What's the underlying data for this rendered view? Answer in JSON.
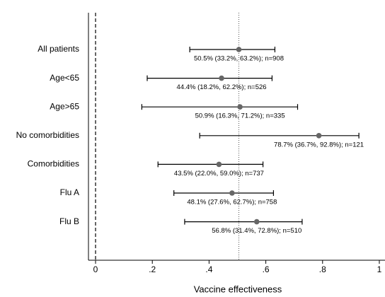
{
  "chart_data": {
    "type": "forest",
    "xlabel": "Vaccine effectiveness",
    "categories": [
      "All patients",
      "Age<65",
      "Age>65",
      "No comorbidities",
      "Comorbidities",
      "Flu A",
      "Flu B"
    ],
    "values": [
      0.505,
      0.444,
      0.509,
      0.787,
      0.435,
      0.481,
      0.568
    ],
    "lower": [
      0.332,
      0.182,
      0.163,
      0.367,
      0.22,
      0.276,
      0.314
    ],
    "upper": [
      0.632,
      0.622,
      0.712,
      0.928,
      0.59,
      0.627,
      0.728
    ],
    "value_labels": [
      "50.5% (33.2%, 63.2%); n=908",
      "44.4% (18.2%, 62.2%); n=526",
      "50.9% (16.3%, 71.2%); n=335",
      "78.7% (36.7%, 92.8%); n=121",
      "43.5% (22.0%, 59.0%); n=737",
      "48.1% (27.6%, 62.7%); n=758",
      "56.8% (31.4%, 72.8%); n=510"
    ],
    "null_line": 0,
    "ref_line": 0.505,
    "xlim": [
      -0.025,
      1.02
    ],
    "xticks": [
      0,
      {
        "value": 0.2,
        "label": ".2"
      },
      {
        "value": 0.4,
        "label": ".4"
      },
      {
        "value": 0.6,
        "label": ".6"
      },
      {
        "value": 0.8,
        "label": ".8"
      },
      1
    ],
    "color": "#666666"
  }
}
